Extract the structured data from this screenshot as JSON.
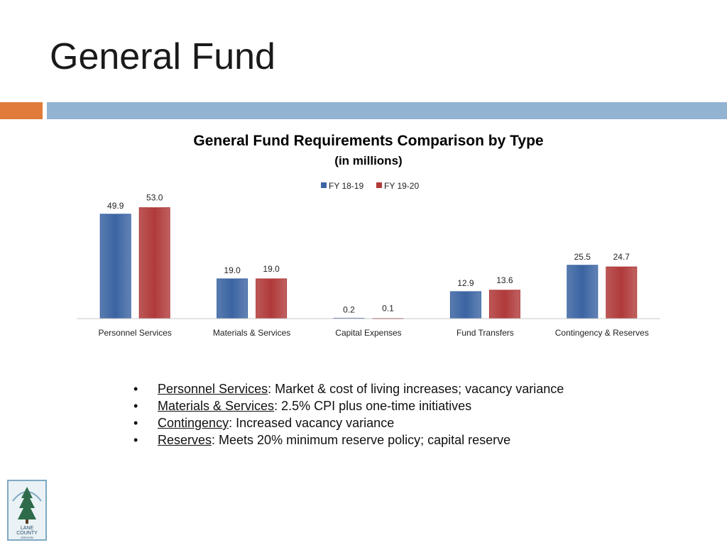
{
  "slide": {
    "title": "General Fund"
  },
  "colors": {
    "accent": "#E07B39",
    "rule": "#93B3D3",
    "series_1": "#3B64A2",
    "series_2": "#B03A3A"
  },
  "chart_data": {
    "type": "bar",
    "title": "General Fund Requirements Comparison by Type",
    "subtitle": "(in millions)",
    "categories": [
      "Personnel Services",
      "Materials & Services",
      "Capital Expenses",
      "Fund Transfers",
      "Contingency & Reserves"
    ],
    "series": [
      {
        "name": "FY 18-19",
        "values": [
          49.9,
          19.0,
          0.2,
          12.9,
          25.5
        ],
        "labels": [
          "49.9",
          "19.0",
          "0.2",
          "12.9",
          "25.5"
        ],
        "color": "#3B64A2"
      },
      {
        "name": "FY 19-20",
        "values": [
          53.0,
          19.0,
          0.1,
          13.6,
          24.7
        ],
        "labels": [
          "53.0",
          "19.0",
          "0.1",
          "13.6",
          "24.7"
        ],
        "color": "#B03A3A"
      }
    ],
    "ylim": [
      0,
      60
    ],
    "legend_position": "top-center",
    "grid": false
  },
  "bullets": [
    {
      "term": "Personnel Services",
      "text": ": Market & cost of living increases; vacancy variance"
    },
    {
      "term": "Materials & Services",
      "text": ": 2.5% CPI plus one-time initiatives"
    },
    {
      "term": "Contingency",
      "text": ": Increased vacancy variance"
    },
    {
      "term": "Reserves",
      "text": ": Meets 20% minimum reserve policy; capital reserve"
    }
  ],
  "logo": {
    "icon": "tree-logo-icon",
    "text_lines": [
      "LANE",
      "COUNTY",
      "OREGON"
    ]
  }
}
